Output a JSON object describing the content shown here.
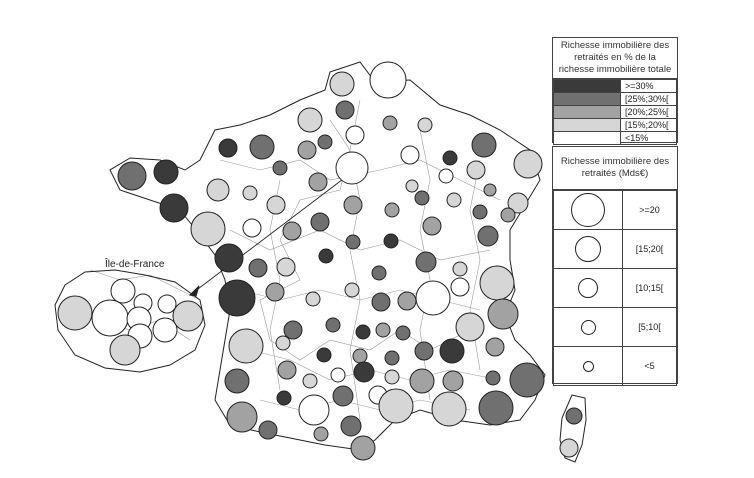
{
  "map": {
    "inset_label": "Île-de-France",
    "palette": {
      "c30": "#3a3a3a",
      "c25": "#707070",
      "c20": "#a2a2a2",
      "c15": "#d6d6d6",
      "c0": "#ffffff",
      "outline": "#222222",
      "border": "#9a9a9a"
    }
  },
  "legend_share": {
    "title": "Richesse immobilière des retraités en % de la richesse immobilière totale",
    "classes": [
      {
        "label": ">=30%",
        "color": "#3a3a3a"
      },
      {
        "label": "[25%;30%[",
        "color": "#707070"
      },
      {
        "label": "[20%;25%[",
        "color": "#a2a2a2"
      },
      {
        "label": "[15%;20%[",
        "color": "#d6d6d6"
      },
      {
        "label": "<15%",
        "color": "#ffffff"
      }
    ]
  },
  "legend_size": {
    "title": "Richesse immobilière des retraités (Mds€)",
    "classes": [
      {
        "label": ">=20",
        "level": 5
      },
      {
        "label": "[15;20[",
        "level": 4
      },
      {
        "label": "[10;15[",
        "level": 3
      },
      {
        "label": "[5;10[",
        "level": 2
      },
      {
        "label": "<5",
        "level": 1
      }
    ]
  }
}
